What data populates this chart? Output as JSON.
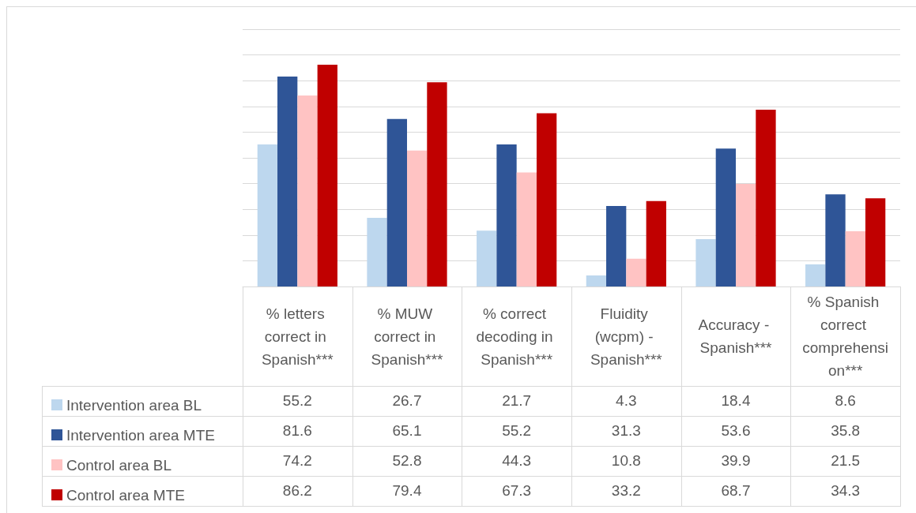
{
  "chart_data": {
    "type": "bar",
    "categories": [
      "% letters correct in Spanish***",
      "% MUW correct in Spanish***",
      "% correct decoding in Spanish***",
      "Fluidity (wcpm) - Spanish***",
      "Accuracy - Spanish***",
      "% Spanish correct comprehension***"
    ],
    "series": [
      {
        "name": "Intervention area BL",
        "color": "#bdd7ee",
        "values": [
          55.2,
          26.7,
          21.7,
          4.3,
          18.4,
          8.6
        ]
      },
      {
        "name": "Intervention area MTE",
        "color": "#2f5597",
        "values": [
          81.6,
          65.1,
          55.2,
          31.3,
          53.6,
          35.8
        ]
      },
      {
        "name": "Control area BL",
        "color": "#ffc3c3",
        "values": [
          74.2,
          52.8,
          44.3,
          10.8,
          39.9,
          21.5
        ]
      },
      {
        "name": "Control area MTE",
        "color": "#c00000",
        "values": [
          86.2,
          79.4,
          67.3,
          33.2,
          68.7,
          34.3
        ]
      }
    ],
    "ylim": [
      0,
      100
    ],
    "yticks": [
      {
        "value": 0,
        "label": null
      },
      {
        "value": 10,
        "label": null
      },
      {
        "value": 20,
        "label": null
      },
      {
        "value": 30,
        "label": null
      },
      {
        "value": 40,
        "label": null
      },
      {
        "value": 50,
        "label": null
      },
      {
        "value": 60,
        "label": null
      },
      {
        "value": 70,
        "label": null
      },
      {
        "value": 80,
        "label": null
      },
      {
        "value": 90,
        "label": null
      },
      {
        "value": 100,
        "label": null
      }
    ],
    "grid": "y",
    "legend": "bottom left",
    "tick_labels": "x",
    "data_labels": true
  }
}
